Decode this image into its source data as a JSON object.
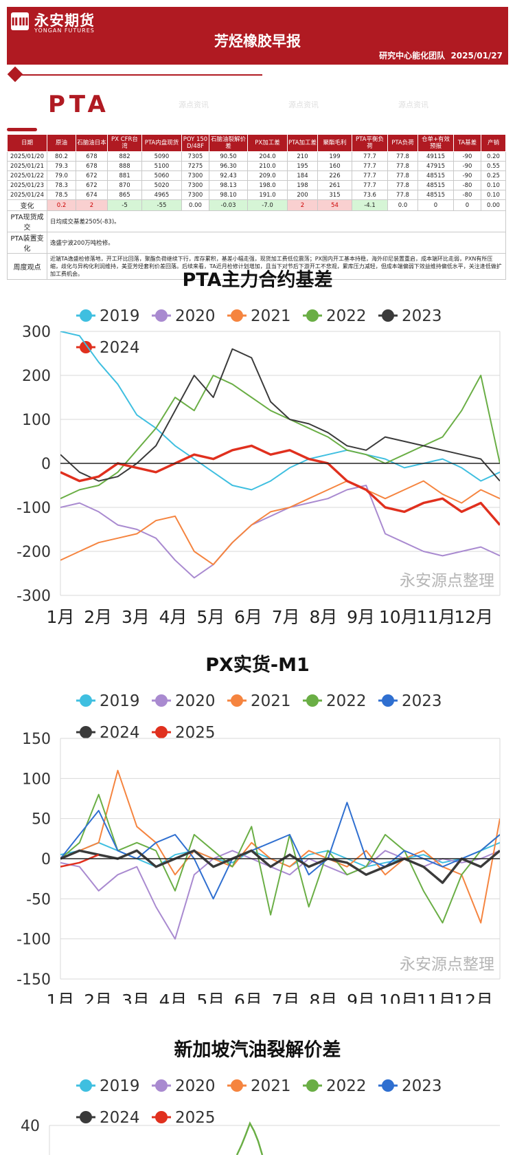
{
  "header": {
    "logo_mark": "ⅡⅢ",
    "logo_cn": "永安期货",
    "logo_en": "YONGAN FUTURES",
    "title": "芳烃橡胶早报",
    "team": "研究中心能化团队",
    "date": "2025/01/27"
  },
  "section": {
    "title": "PTA"
  },
  "watermark": "源点资讯",
  "table": {
    "headers": [
      "日期",
      "原油",
      "石脑油日本",
      "PX CFR台湾",
      "PTA内盘现货",
      "POY 150 D/48F",
      "石脑油裂解价差",
      "PX加工差",
      "PTA加工差",
      "聚酯毛利",
      "PTA平衡负荷",
      "PTA负荷",
      "仓单+有效预报",
      "TA基差",
      "产销"
    ],
    "rows": [
      [
        "2025/01/20",
        "80.2",
        "678",
        "882",
        "5090",
        "7305",
        "90.50",
        "204.0",
        "210",
        "199",
        "77.7",
        "77.8",
        "49115",
        "-90",
        "0.20"
      ],
      [
        "2025/01/21",
        "79.3",
        "678",
        "888",
        "5100",
        "7275",
        "96.30",
        "210.0",
        "195",
        "160",
        "77.7",
        "77.8",
        "47915",
        "-90",
        "0.55"
      ],
      [
        "2025/01/22",
        "79.0",
        "672",
        "881",
        "5060",
        "7300",
        "92.43",
        "209.0",
        "184",
        "226",
        "77.7",
        "77.8",
        "48515",
        "-90",
        "0.25"
      ],
      [
        "2025/01/23",
        "78.3",
        "672",
        "870",
        "5020",
        "7300",
        "98.13",
        "198.0",
        "198",
        "261",
        "77.7",
        "77.8",
        "48515",
        "-80",
        "0.10"
      ],
      [
        "2025/01/24",
        "78.5",
        "674",
        "865",
        "4965",
        "7300",
        "98.10",
        "191.0",
        "200",
        "315",
        "73.6",
        "77.8",
        "48515",
        "-80",
        "0.10"
      ]
    ],
    "change_label": "变化",
    "change": [
      "0.2",
      "2",
      "-5",
      "-55",
      "0.00",
      "-0.03",
      "-7.0",
      "2",
      "54",
      "-4.1",
      "0.0",
      "0",
      "0",
      "0.00"
    ],
    "change_style": [
      "pos",
      "pos",
      "neg",
      "neg",
      "",
      "neg",
      "neg",
      "pos",
      "pos",
      "neg",
      "",
      "",
      "",
      ""
    ],
    "spot_label": "PTA现货成交",
    "spot_text": "日均成交基差2505(-83)。",
    "device_label": "PTA装置变化",
    "device_text": "逸盛宁波200万吨检修。",
    "weekly_label": "周度观点",
    "weekly_text": "近端TA逸盛检修落地，开工环比回落，聚酯负荷继续下行，库存累积，基差小幅走强，现货加工费低位震荡；PX国内开工基本持稳，海外印尼装置重启，成本端环比走弱，PXN有所压缩，歧化与异构化利润维持，美亚芳烃套利价差回落。后续来看，TA近月检修计划增加，且当下对节后下游开工不悲观，累库压力减轻，但成本端偏弱下效益维持偏低水平，关注逢低做扩加工费机会。"
  },
  "chart_data": [
    {
      "type": "line",
      "title": "PTA主力合约基差",
      "x_ticks": [
        "1月",
        "2月",
        "3月",
        "4月",
        "5月",
        "6月",
        "7月",
        "8月",
        "9月",
        "10月",
        "11月",
        "12月"
      ],
      "ylim": [
        -300,
        300
      ],
      "y_ticks": [
        300,
        200,
        100,
        0,
        -100,
        -200,
        -300
      ],
      "watermark": "永安源点整理",
      "series": [
        {
          "name": "2019",
          "color": "#3fbfe0",
          "width": 2,
          "values": [
            300,
            290,
            230,
            180,
            110,
            80,
            40,
            10,
            -20,
            -50,
            -60,
            -40,
            -10,
            10,
            20,
            30,
            20,
            10,
            -10,
            0,
            10,
            -10,
            -40,
            -20
          ]
        },
        {
          "name": "2020",
          "color": "#a98ad0",
          "width": 2,
          "values": [
            -100,
            -90,
            -110,
            -140,
            -150,
            -170,
            -220,
            -260,
            -230,
            -180,
            -140,
            -120,
            -100,
            -90,
            -80,
            -60,
            -50,
            -160,
            -180,
            -200,
            -210,
            -200,
            -190,
            -210
          ]
        },
        {
          "name": "2021",
          "color": "#f5843f",
          "width": 2,
          "values": [
            -220,
            -200,
            -180,
            -170,
            -160,
            -130,
            -120,
            -200,
            -230,
            -180,
            -140,
            -110,
            -100,
            -80,
            -60,
            -40,
            -60,
            -80,
            -60,
            -40,
            -70,
            -90,
            -60,
            -80
          ]
        },
        {
          "name": "2022",
          "color": "#6aae45",
          "width": 2,
          "values": [
            -80,
            -60,
            -50,
            -20,
            30,
            80,
            150,
            120,
            200,
            180,
            150,
            120,
            100,
            80,
            60,
            30,
            20,
            0,
            20,
            40,
            60,
            120,
            200,
            0
          ]
        },
        {
          "name": "2023",
          "color": "#3a3a3a",
          "width": 2,
          "values": [
            20,
            -20,
            -40,
            -30,
            0,
            40,
            120,
            200,
            150,
            260,
            240,
            140,
            100,
            90,
            70,
            40,
            30,
            60,
            50,
            40,
            30,
            20,
            10,
            -40
          ]
        },
        {
          "name": "2024",
          "color": "#e0301e",
          "width": 3.5,
          "values": [
            -20,
            -40,
            -30,
            0,
            -10,
            -20,
            0,
            20,
            10,
            30,
            40,
            20,
            30,
            10,
            0,
            -40,
            -60,
            -100,
            -110,
            -90,
            -80,
            -110,
            -90,
            -140
          ]
        }
      ]
    },
    {
      "type": "line",
      "title": "PX实货-M1",
      "x_ticks": [
        "1月",
        "2月",
        "3月",
        "4月",
        "5月",
        "6月",
        "7月",
        "8月",
        "9月",
        "10月",
        "11月",
        "12月"
      ],
      "ylim": [
        -150,
        150
      ],
      "y_ticks": [
        150,
        100,
        50,
        0,
        -50,
        -100,
        -150
      ],
      "watermark": "永安源点整理",
      "series": [
        {
          "name": "2019",
          "color": "#3fbfe0",
          "width": 2,
          "values": [
            5,
            10,
            20,
            10,
            0,
            -10,
            5,
            10,
            0,
            -5,
            10,
            0,
            -10,
            5,
            10,
            0,
            -10,
            -5,
            0,
            5,
            -5,
            0,
            10,
            20
          ]
        },
        {
          "name": "2020",
          "color": "#a98ad0",
          "width": 2,
          "values": [
            -5,
            -10,
            -40,
            -20,
            -10,
            -60,
            -100,
            -20,
            0,
            10,
            0,
            -10,
            -20,
            0,
            -10,
            -20,
            -10,
            10,
            0,
            -10,
            0,
            -5,
            0,
            10
          ]
        },
        {
          "name": "2021",
          "color": "#f5843f",
          "width": 2,
          "values": [
            0,
            10,
            20,
            110,
            40,
            20,
            -20,
            10,
            0,
            -10,
            20,
            0,
            -10,
            10,
            0,
            -10,
            10,
            -20,
            0,
            10,
            -10,
            -20,
            -80,
            50
          ]
        },
        {
          "name": "2022",
          "color": "#6aae45",
          "width": 2,
          "values": [
            0,
            20,
            80,
            10,
            20,
            10,
            -40,
            30,
            10,
            -10,
            40,
            -70,
            30,
            -60,
            10,
            -20,
            -10,
            30,
            10,
            -40,
            -80,
            -20,
            10,
            30
          ]
        },
        {
          "name": "2023",
          "color": "#2f6fd0",
          "width": 2,
          "values": [
            0,
            30,
            60,
            10,
            0,
            20,
            30,
            0,
            -50,
            0,
            10,
            20,
            30,
            -20,
            0,
            70,
            0,
            -10,
            10,
            0,
            -10,
            0,
            10,
            30
          ]
        },
        {
          "name": "2024",
          "color": "#3a3a3a",
          "width": 3.5,
          "values": [
            0,
            10,
            5,
            0,
            10,
            -10,
            0,
            10,
            -10,
            0,
            10,
            -10,
            5,
            -10,
            0,
            -5,
            -20,
            -10,
            0,
            -10,
            -30,
            0,
            -10,
            10
          ]
        },
        {
          "name": "2025",
          "color": "#e0301e",
          "width": 2.5,
          "values": [
            -10,
            -5,
            5
          ]
        }
      ]
    },
    {
      "type": "line",
      "title": "新加坡汽油裂解价差",
      "ylim": [
        0,
        40
      ],
      "y_ticks": [
        40
      ],
      "legend": [
        "2019",
        "2020",
        "2021",
        "2022",
        "2023",
        "2024",
        "2025"
      ]
    }
  ]
}
